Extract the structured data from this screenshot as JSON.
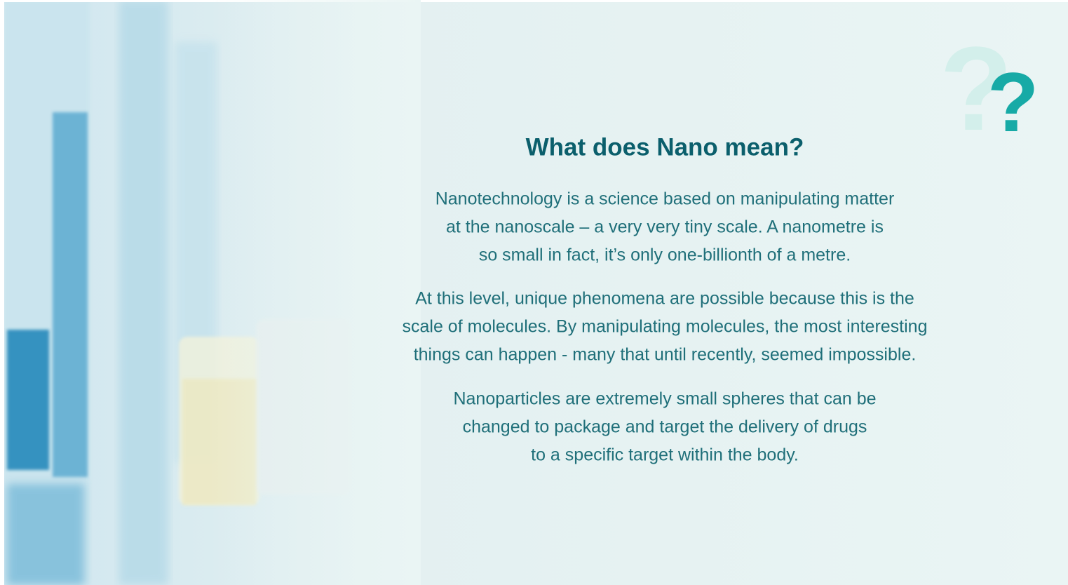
{
  "decoration": {
    "question_marks": [
      "?",
      "?"
    ]
  },
  "title": "What does Nano mean?",
  "paragraphs": [
    [
      "Nanotechnology is a science based on manipulating matter",
      "at the nanoscale – a very very tiny scale. A nanometre is",
      "so small in fact, it’s only one-billionth of a metre."
    ],
    [
      "At this level, unique phenomena are possible because this is the",
      "scale of molecules. By manipulating molecules, the most interesting",
      "things can happen - many that until recently, seemed impossible."
    ],
    [
      "Nanoparticles are extremely small spheres that can be",
      "changed to package and target the delivery of drugs",
      "to a specific target within the body."
    ]
  ]
}
